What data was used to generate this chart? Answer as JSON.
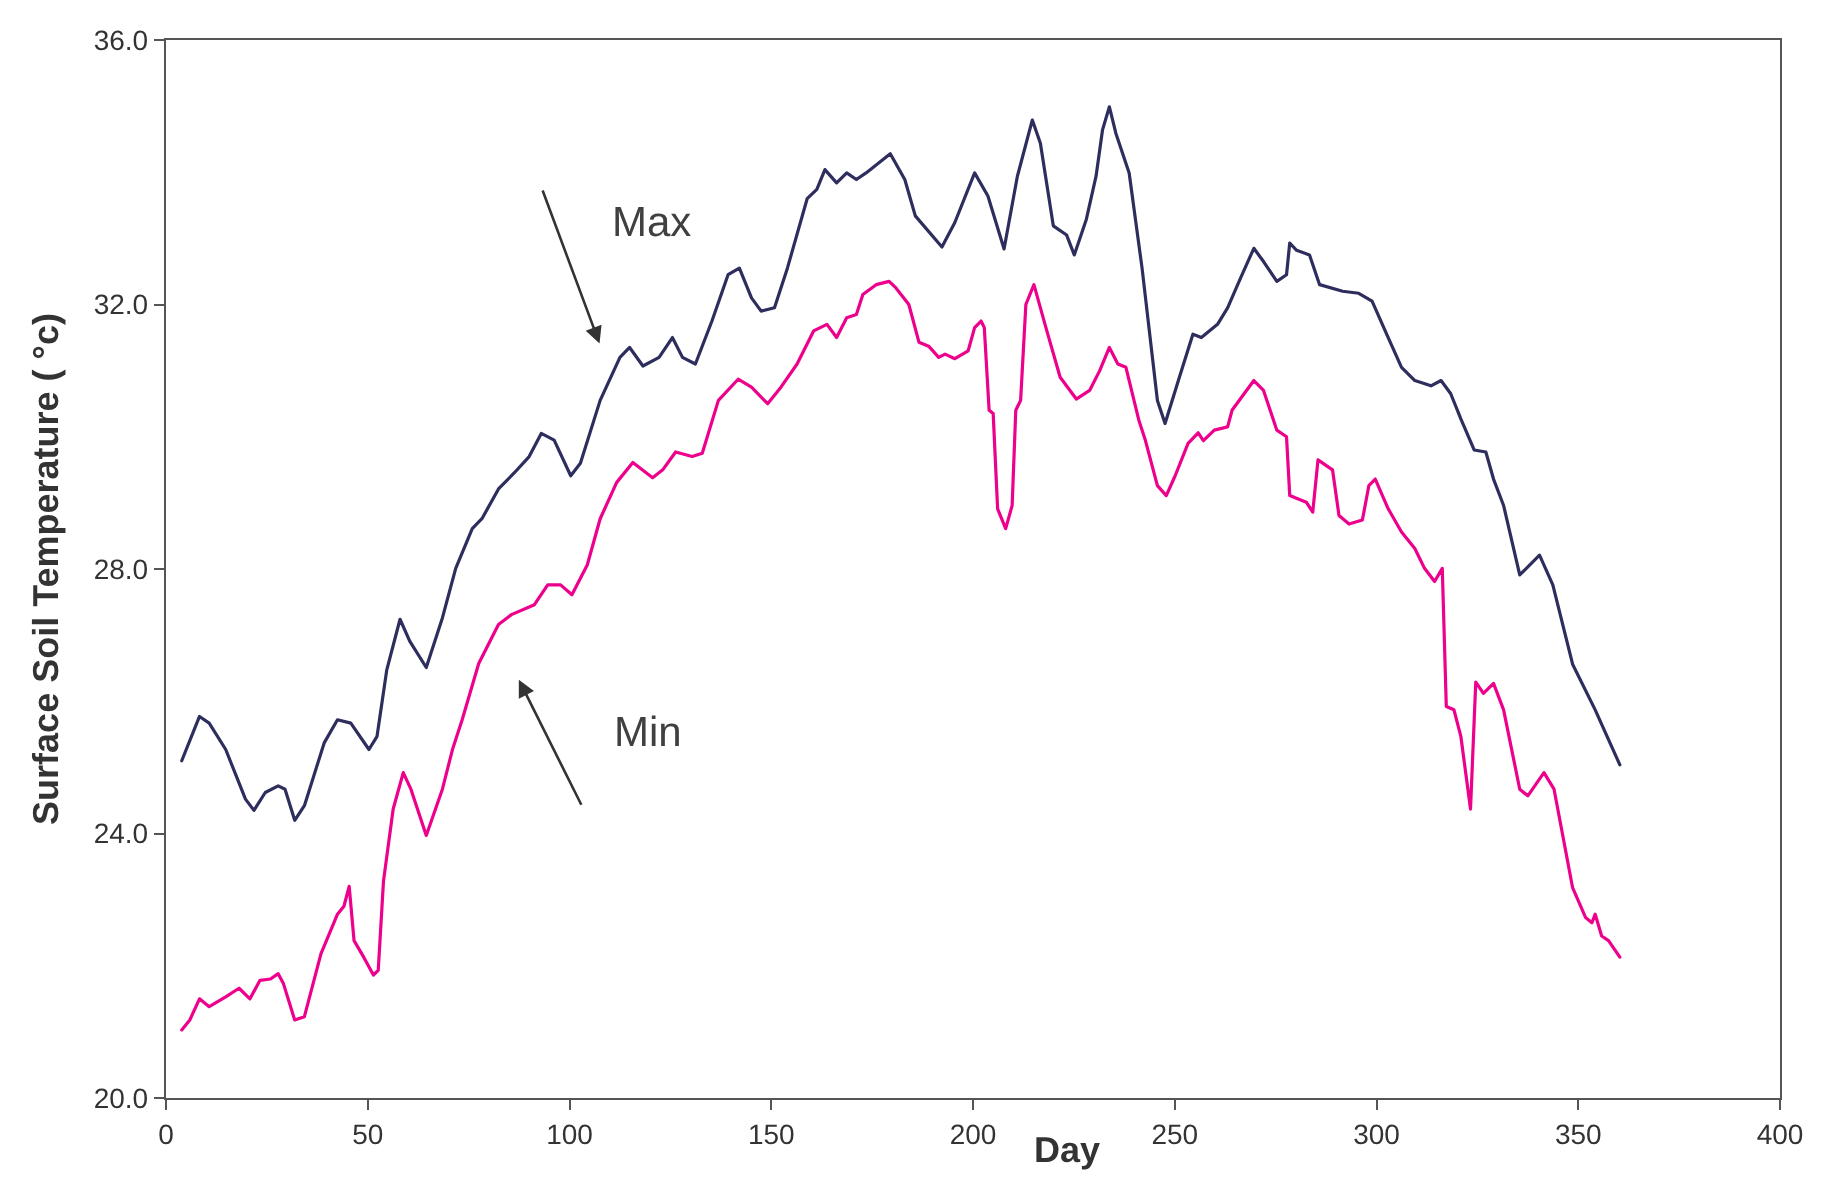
{
  "chart_data": {
    "type": "line",
    "xlabel": "Day",
    "ylabel": "Surface Soil Temperature ( °c)",
    "xlim": [
      0,
      400
    ],
    "xticks": [
      0,
      50,
      100,
      150,
      200,
      250,
      300,
      350,
      400
    ],
    "ylim": [
      20,
      36
    ],
    "yticks": [
      {
        "value": 20,
        "label": "20.0"
      },
      {
        "value": 24,
        "label": "24.0"
      },
      {
        "value": 28,
        "label": "28.0"
      },
      {
        "value": 32,
        "label": "32.0"
      },
      {
        "value": 36,
        "label": "36.0"
      }
    ],
    "grid": false,
    "legend": false,
    "marker": "none",
    "line_style": "solid",
    "series": [
      {
        "color": "#2e2e5e",
        "x": [
          3.9,
          8.3,
          10.7,
          14.8,
          19.7,
          21.8,
          24.6,
          27.8,
          29.5,
          31.9,
          34.3,
          39.2,
          42.5,
          45.8,
          50.3,
          52.3,
          54.7,
          58.0,
          60.4,
          64.5,
          68.5,
          71.8,
          75.9,
          78.3,
          82.4,
          86.4,
          90.0,
          93.0,
          96.2,
          100.3,
          102.7,
          107.6,
          112.5,
          114.9,
          118.2,
          122.2,
          125.5,
          128.0,
          131.2,
          135.3,
          139.3,
          142.1,
          145.1,
          147.5,
          150.8,
          154.0,
          158.9,
          161.3,
          163.3,
          166.2,
          168.7,
          171.1,
          173.5,
          179.5,
          183.1,
          185.7,
          192.3,
          195.5,
          200.4,
          203.7,
          207.7,
          211.0,
          214.7,
          216.7,
          219.9,
          223.2,
          225.1,
          228.1,
          230.5,
          232.1,
          233.8,
          235.4,
          238.7,
          241.9,
          245.7,
          247.6,
          250.9,
          254.5,
          256.6,
          260.6,
          263.1,
          266.3,
          269.6,
          272.0,
          275.3,
          277.7,
          278.5,
          280.2,
          283.4,
          285.9,
          291.6,
          295.6,
          298.9,
          302.9,
          306.2,
          309.5,
          313.5,
          316.0,
          318.4,
          320.9,
          324.2,
          327.1,
          329.0,
          331.5,
          335.5,
          340.4,
          343.7,
          348.6,
          354.2,
          357.5,
          360.3
        ],
        "values": [
          25.1,
          25.77,
          25.67,
          25.27,
          24.52,
          24.35,
          24.62,
          24.72,
          24.67,
          24.2,
          24.42,
          25.37,
          25.72,
          25.67,
          25.27,
          25.47,
          26.47,
          27.24,
          26.91,
          26.51,
          27.26,
          28.01,
          28.61,
          28.76,
          29.21,
          29.46,
          29.7,
          30.05,
          29.95,
          29.41,
          29.6,
          30.55,
          31.2,
          31.35,
          31.07,
          31.2,
          31.5,
          31.2,
          31.1,
          31.75,
          32.45,
          32.55,
          32.1,
          31.9,
          31.95,
          32.55,
          33.6,
          33.74,
          34.04,
          33.84,
          33.99,
          33.89,
          33.99,
          34.28,
          33.89,
          33.34,
          32.87,
          33.24,
          33.99,
          33.64,
          32.84,
          33.94,
          34.79,
          34.44,
          33.19,
          33.05,
          32.75,
          33.29,
          33.94,
          34.64,
          34.99,
          34.59,
          33.99,
          32.55,
          30.55,
          30.2,
          30.85,
          31.55,
          31.5,
          31.7,
          31.95,
          32.4,
          32.85,
          32.65,
          32.35,
          32.45,
          32.93,
          32.82,
          32.75,
          32.3,
          32.2,
          32.17,
          32.05,
          31.5,
          31.05,
          30.85,
          30.77,
          30.85,
          30.65,
          30.27,
          29.8,
          29.77,
          29.36,
          28.96,
          27.91,
          28.21,
          27.76,
          26.56,
          25.87,
          25.42,
          25.04
        ]
      },
      {
        "color": "#ec008c",
        "x": [
          3.9,
          5.9,
          8.3,
          10.7,
          14.8,
          18.1,
          20.8,
          23.3,
          25.9,
          27.8,
          29.1,
          31.9,
          34.3,
          38.4,
          42.5,
          44.1,
          45.4,
          46.6,
          49.0,
          51.4,
          52.6,
          53.9,
          56.3,
          58.8,
          60.7,
          64.5,
          68.5,
          71.0,
          73.4,
          77.5,
          82.4,
          85.6,
          91.3,
          94.6,
          97.8,
          100.6,
          104.4,
          107.6,
          111.7,
          115.7,
          120.6,
          123.1,
          126.3,
          130.4,
          132.9,
          136.9,
          141.8,
          145.1,
          149.1,
          152.4,
          156.4,
          160.5,
          163.8,
          166.2,
          168.7,
          171.1,
          172.7,
          176.0,
          179.2,
          180.9,
          184.1,
          186.6,
          189.0,
          191.5,
          193.1,
          195.5,
          198.8,
          200.4,
          202.0,
          202.8,
          204.0,
          205.0,
          206.1,
          208.1,
          209.7,
          210.6,
          211.8,
          213.1,
          215.1,
          218.3,
          221.6,
          225.6,
          228.9,
          231.4,
          233.8,
          235.9,
          237.9,
          241.1,
          242.7,
          245.7,
          247.9,
          250.1,
          253.3,
          255.8,
          257.1,
          259.8,
          263.1,
          264.2,
          269.6,
          272.0,
          275.3,
          277.7,
          278.5,
          282.6,
          284.2,
          285.5,
          289.1,
          290.7,
          293.2,
          296.5,
          298.1,
          299.7,
          302.9,
          306.2,
          309.5,
          311.9,
          314.4,
          316.3,
          317.3,
          319.2,
          320.9,
          323.3,
          324.6,
          326.5,
          329.0,
          331.5,
          335.5,
          337.5,
          341.5,
          344.0,
          348.6,
          351.8,
          353.4,
          354.2,
          355.8,
          357.5,
          360.3
        ],
        "values": [
          21.03,
          21.18,
          21.5,
          21.38,
          21.53,
          21.66,
          21.5,
          21.78,
          21.8,
          21.88,
          21.73,
          21.18,
          21.23,
          22.18,
          22.78,
          22.9,
          23.2,
          22.38,
          22.13,
          21.86,
          21.93,
          23.28,
          24.37,
          24.92,
          24.67,
          23.97,
          24.67,
          25.27,
          25.72,
          26.57,
          27.16,
          27.31,
          27.46,
          27.76,
          27.76,
          27.61,
          28.06,
          28.76,
          29.31,
          29.61,
          29.38,
          29.5,
          29.77,
          29.7,
          29.75,
          30.55,
          30.87,
          30.75,
          30.5,
          30.75,
          31.1,
          31.6,
          31.7,
          31.5,
          31.8,
          31.85,
          32.15,
          32.3,
          32.35,
          32.25,
          32.0,
          31.43,
          31.37,
          31.2,
          31.25,
          31.18,
          31.3,
          31.65,
          31.75,
          31.65,
          30.4,
          30.35,
          28.91,
          28.61,
          28.96,
          30.4,
          30.55,
          32.0,
          32.3,
          31.6,
          30.9,
          30.57,
          30.7,
          31.0,
          31.35,
          31.1,
          31.05,
          30.25,
          29.95,
          29.26,
          29.11,
          29.41,
          29.9,
          30.06,
          29.94,
          30.1,
          30.15,
          30.4,
          30.85,
          30.7,
          30.1,
          30.0,
          29.11,
          29.01,
          28.86,
          29.65,
          29.5,
          28.81,
          28.68,
          28.74,
          29.26,
          29.36,
          28.91,
          28.56,
          28.31,
          28.01,
          27.81,
          28.01,
          25.92,
          25.87,
          25.47,
          24.37,
          26.29,
          26.12,
          26.27,
          25.87,
          24.67,
          24.57,
          24.92,
          24.67,
          23.18,
          22.73,
          22.65,
          22.78,
          22.45,
          22.38,
          22.13
        ]
      }
    ],
    "annotations": [
      "Max",
      "Min"
    ]
  }
}
